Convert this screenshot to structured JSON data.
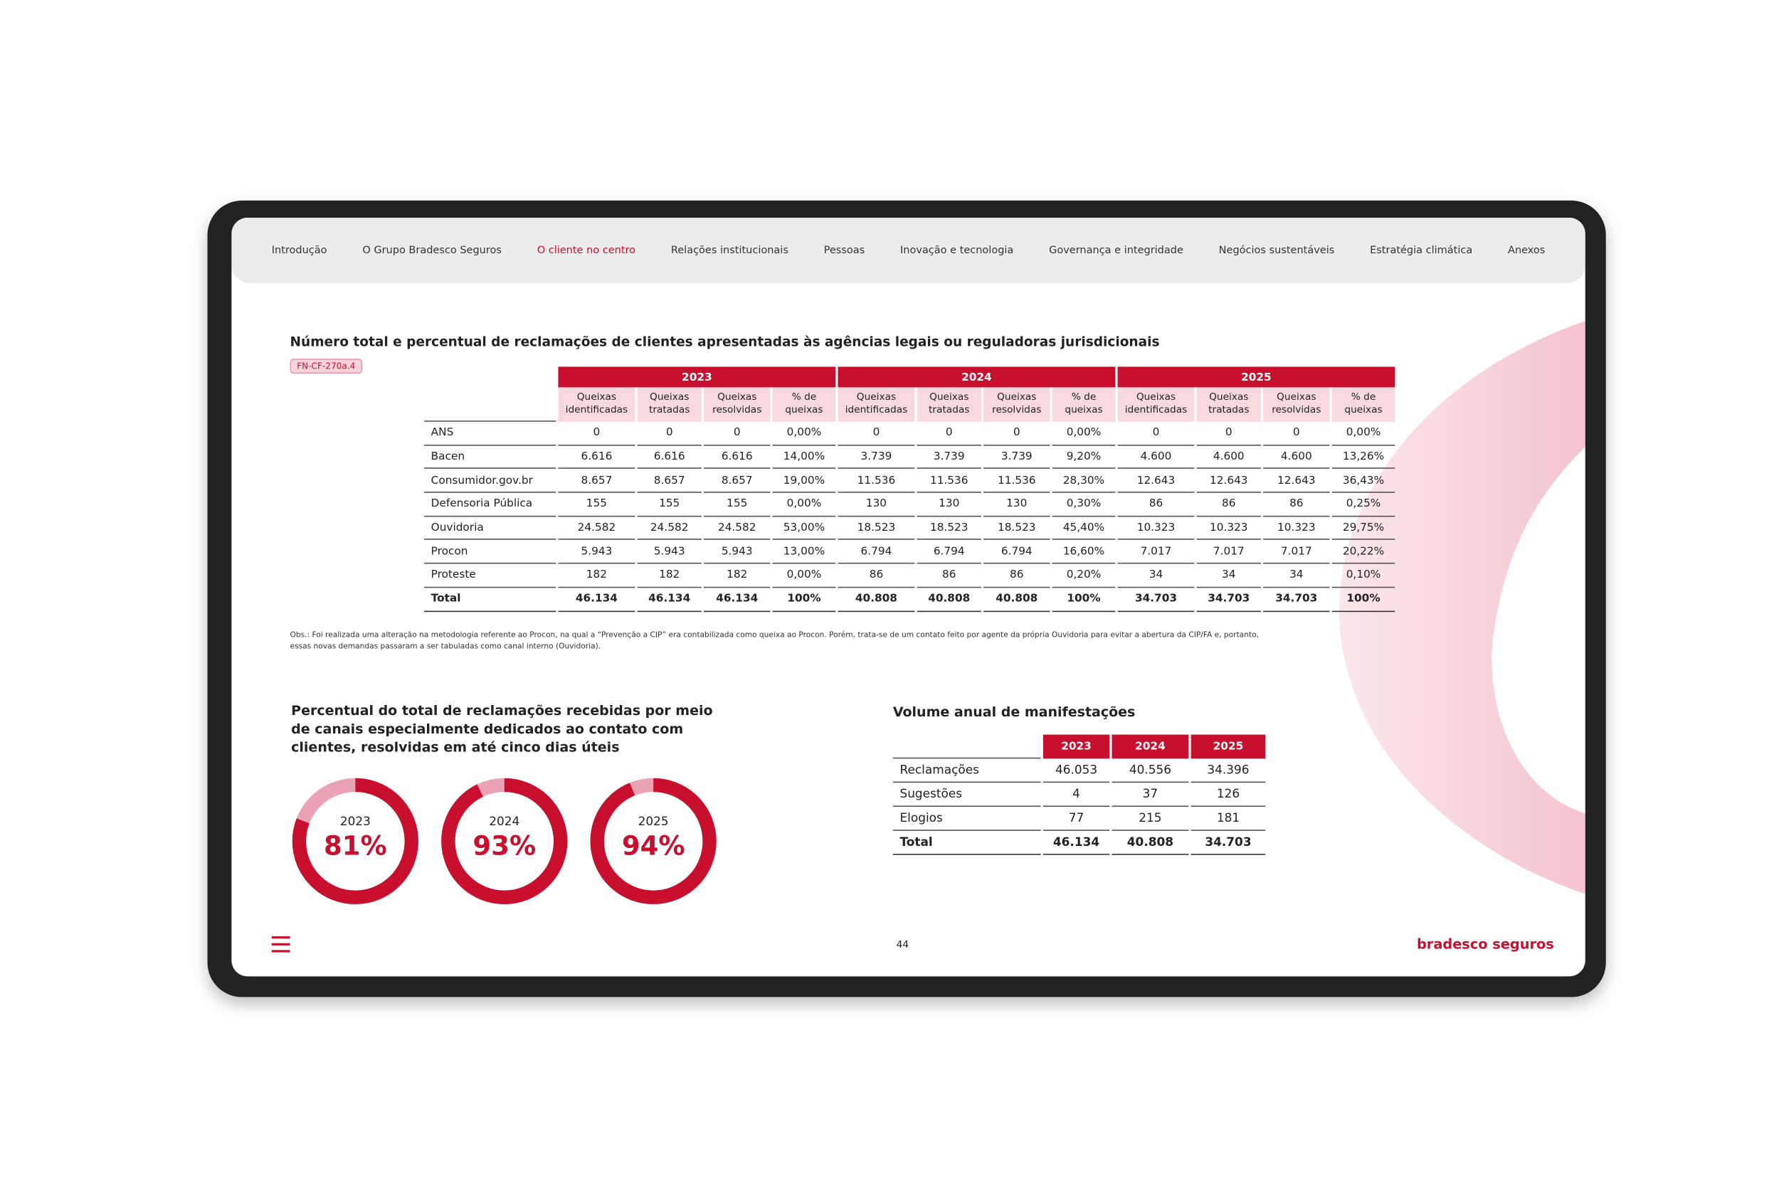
{
  "nav": [
    "Introdução",
    "O Grupo Bradesco Seguros",
    "O cliente no centro",
    "Relações institucionais",
    "Pessoas",
    "Inovação e tecnologia",
    "Governança e integridade",
    "Negócios sustentáveis",
    "Estratégia climática",
    "Anexos"
  ],
  "page_title": "Número total e percentual de reclamações de clientes apresentadas às agências legais ou reguladoras jurisdicionais",
  "tag": "FN-CF-270a.4",
  "table": {
    "years": [
      "2023",
      "2024",
      "2025"
    ],
    "columns": [
      "Queixas identificadas",
      "Queixas tratadas",
      "Queixas resolvidas",
      "% de queixas"
    ],
    "rows": [
      [
        "ANS",
        "0",
        "0",
        "0",
        "0,00%",
        "0",
        "0",
        "0",
        "0,00%",
        "0",
        "0",
        "0",
        "0,00%"
      ],
      [
        "Bacen",
        "6.616",
        "6.616",
        "6.616",
        "14,00%",
        "3.739",
        "3.739",
        "3.739",
        "9,20%",
        "4.600",
        "4.600",
        "4.600",
        "13,26%"
      ],
      [
        "Consumidor.gov.br",
        "8.657",
        "8.657",
        "8.657",
        "19,00%",
        "11.536",
        "11.536",
        "11.536",
        "28,30%",
        "12.643",
        "12.643",
        "12.643",
        "36,43%"
      ],
      [
        "Defensoria Pública",
        "155",
        "155",
        "155",
        "0,00%",
        "130",
        "130",
        "130",
        "0,30%",
        "86",
        "86",
        "86",
        "0,25%"
      ],
      [
        "Ouvidoria",
        "24.582",
        "24.582",
        "24.582",
        "53,00%",
        "18.523",
        "18.523",
        "18.523",
        "45,40%",
        "10.323",
        "10.323",
        "10.323",
        "29,75%"
      ],
      [
        "Procon",
        "5.943",
        "5.943",
        "5.943",
        "13,00%",
        "6.794",
        "6.794",
        "6.794",
        "16,60%",
        "7.017",
        "7.017",
        "7.017",
        "20,22%"
      ],
      [
        "Proteste",
        "182",
        "182",
        "182",
        "0,00%",
        "86",
        "86",
        "86",
        "0,20%",
        "34",
        "34",
        "34",
        "0,10%"
      ],
      [
        "Total",
        "46.134",
        "46.134",
        "46.134",
        "100%",
        "40.808",
        "40.808",
        "40.808",
        "100%",
        "34.703",
        "34.703",
        "34.703",
        "100%"
      ]
    ]
  },
  "note": "Obs.: Foi realizada uma alteração na metodologia referente ao Procon, na qual a “Prevenção a CIP” era contabilizada como queixa ao Procon. Porém, trata-se de um contato feito por agente da própria Ouvidoria para evitar a abertura da CIP/FA e, portanto, essas novas demandas passaram a ser tabuladas como canal interno (Ouvidoria).",
  "donuts": {
    "title": "Percentual do total de reclamações recebidas por meio de canais especialmente dedicados ao contato com clientes, resolvidas em até cinco dias úteis",
    "years": [
      "2023",
      "2024",
      "2025"
    ],
    "values": [
      81,
      93,
      94
    ],
    "value_labels": [
      "81%",
      "93%",
      "94%"
    ]
  },
  "volume": {
    "title": "Volume anual de manifestações",
    "years": [
      "2023",
      "2024",
      "2025"
    ],
    "rows": [
      [
        "Reclamações",
        "46.053",
        "40.556",
        "34.396"
      ],
      [
        "Sugestões",
        "4",
        "37",
        "126"
      ],
      [
        "Elogios",
        "77",
        "215",
        "181"
      ],
      [
        "Total",
        "46.134",
        "40.808",
        "34.703"
      ]
    ]
  },
  "footer": {
    "page": "44",
    "logo": "bradesco seguros"
  }
}
